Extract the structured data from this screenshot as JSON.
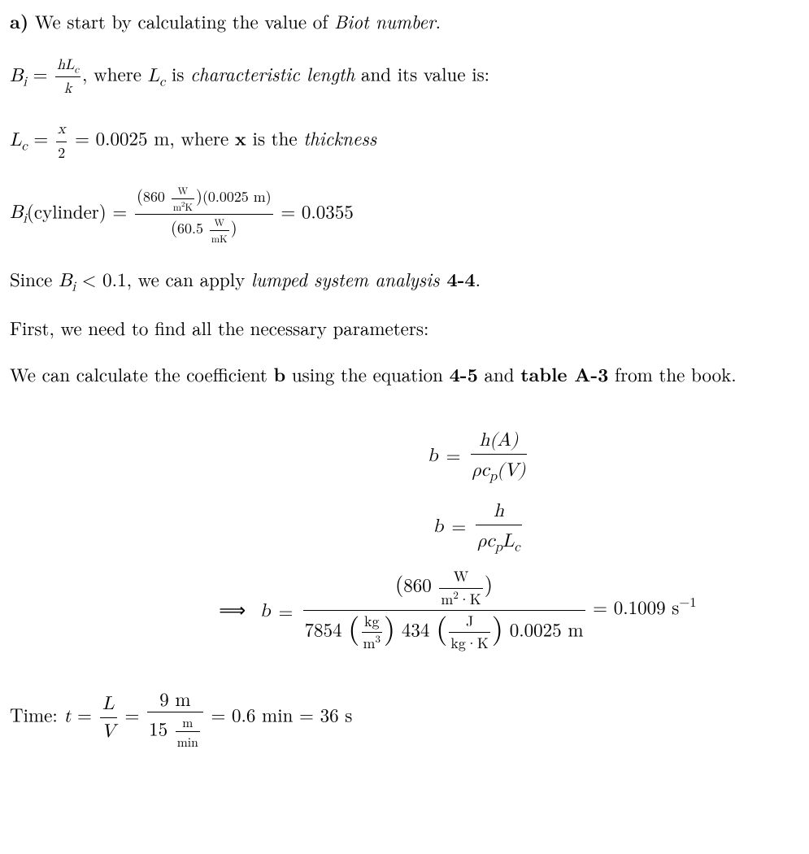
{
  "colors": {
    "text": "#000000",
    "background": "#ffffff",
    "rule": "#000000"
  },
  "typography": {
    "base_fontsize_pt": 17,
    "family": "Computer Modern / Times",
    "line_height": 1.35,
    "justify": true
  },
  "p1": {
    "part": "a)",
    "text_before": " We start by calculating the value of ",
    "term": "Biot number",
    "text_after": "."
  },
  "p2": {
    "lhs_var": "B",
    "lhs_sub": "i",
    "eq": " = ",
    "frac_num": "hL",
    "frac_num_sub": "c",
    "frac_den": "k",
    "mid1": ", where ",
    "L": "L",
    "L_sub": "c",
    "mid2": " is ",
    "term": "characteristic length",
    "mid3": " and its value is:"
  },
  "p3": {
    "L": "L",
    "L_sub": "c",
    "eq": " = ",
    "frac_num": "x",
    "frac_den": "2",
    "val": " = 0.0025 m, where ",
    "x_bold": "x",
    "mid": " is the ",
    "term": "thickness"
  },
  "p4": {
    "lhs_var": "B",
    "lhs_sub": "i",
    "lhs_arg": "(cylinder) = ",
    "num_val1": "860 ",
    "num_unit1_top": "W",
    "num_unit1_bot": "m",
    "num_unit1_bot2": "2",
    "num_unit1_bot3": "K",
    "num_val2": "(0.0025 m)",
    "den_val": "60.5 ",
    "den_unit_top": "W",
    "den_unit_bot": "mK",
    "result": " = 0.0355"
  },
  "p5": {
    "pre": "Since ",
    "B": "B",
    "B_sub": "i",
    "cmp": " < 0.1, we can apply ",
    "term": "lumped system analysis",
    "ref": " 4-4",
    "dot": "."
  },
  "p6": {
    "text": "First, we need to find all the necessary parameters:"
  },
  "p7": {
    "t1": "We can calculate the coefficient ",
    "b": "b",
    "t2": " using the equation ",
    "ref1": "4-5",
    "t3": " and ",
    "ref2": "table A-3",
    "t4": " from the book."
  },
  "eq1": {
    "r1": {
      "lhs": "b",
      "num": "h(A)",
      "den_rho": "ρ",
      "den_c": "c",
      "den_c_sub": "p",
      "den_V": "(V)"
    },
    "r2": {
      "lhs": "b",
      "num": "h",
      "den_rho": "ρ",
      "den_c": "c",
      "den_c_sub": "p",
      "den_L": "L",
      "den_L_sub": "c"
    },
    "r3": {
      "arrow": "⟹",
      "lhs": "b",
      "num_val": "860 ",
      "num_unit_top": "W",
      "num_unit_bot1": "m",
      "num_unit_bot1_sup": "2",
      "num_unit_dot": "·",
      "num_unit_bot2": "K",
      "den_a": "7854 ",
      "den_a_unit_top": "kg",
      "den_a_unit_bot": "m",
      "den_a_unit_bot_sup": "3",
      "den_b": " 434 ",
      "den_b_unit_top": "J",
      "den_b_unit_bot1": "kg",
      "den_b_unit_dot": "·",
      "den_b_unit_bot2": "K",
      "den_c": " 0.0025 m",
      "result": " = 0.1009 s",
      "result_sup": "−1"
    }
  },
  "p8": {
    "label": "Time: ",
    "t": "t",
    "eq": " = ",
    "frac1_num": "L",
    "frac1_den": "V",
    "eq2": " = ",
    "frac2_num": "9 m",
    "frac2_den_v": "15 ",
    "frac2_den_u_top": "m",
    "frac2_den_u_bot": "min",
    "result": " = 0.6 min = 36 s"
  }
}
